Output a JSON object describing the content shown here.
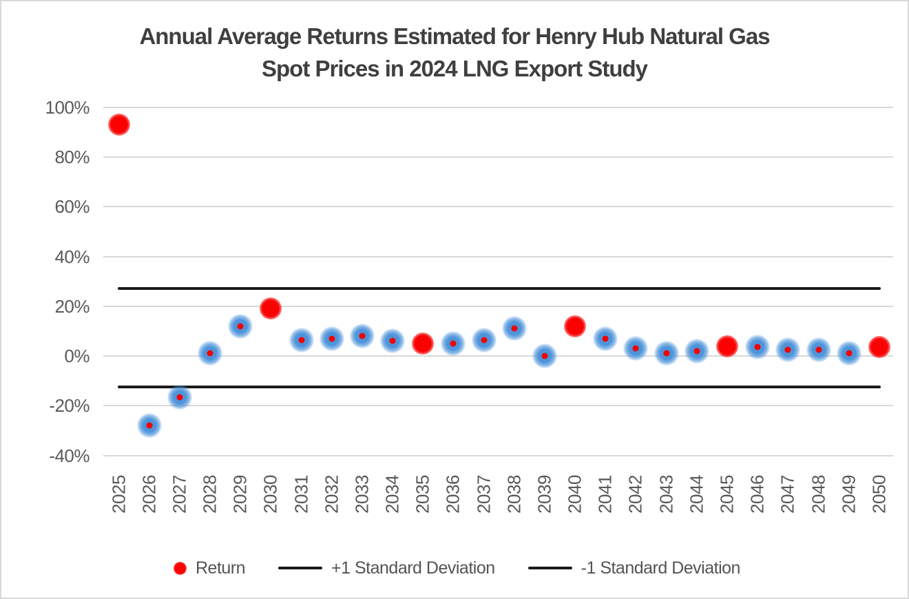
{
  "window": {
    "background": "#ffffff",
    "border_color": "#d9d9d9"
  },
  "title": {
    "line1": "Annual Average Returns Estimated for Henry Hub Natural Gas",
    "line2": "Spot Prices in 2024 LNG Export Study"
  },
  "legend": {
    "position": "bottom",
    "items": [
      {
        "label": "Return",
        "marker": "red-dot"
      },
      {
        "label": "+1 Standard Deviation",
        "marker": "black-line"
      },
      {
        "label": "-1 Standard Deviation",
        "marker": "black-line"
      }
    ]
  },
  "colors": {
    "return_red": "#fa0202",
    "halo_blue": "#4d94db",
    "sd_line_black": "#1a1a1a",
    "gridline_gray": "#d9d9d9",
    "title_text": "#3f3f3f",
    "axis_text": "#595959"
  },
  "chart_data": {
    "type": "scatter",
    "title": "Annual Average Returns Estimated for Henry Hub Natural Gas Spot Prices in 2024 LNG Export Study",
    "xlabel": "",
    "ylabel": "",
    "ytick_format": "percent",
    "yticks": [
      100,
      80,
      60,
      40,
      20,
      0,
      -20,
      -40
    ],
    "ylim": [
      -45,
      105
    ],
    "grid": true,
    "legend_position": "bottom",
    "categories": [
      2025,
      2026,
      2027,
      2028,
      2029,
      2030,
      2031,
      2032,
      2033,
      2034,
      2035,
      2036,
      2037,
      2038,
      2039,
      2040,
      2041,
      2042,
      2043,
      2044,
      2045,
      2046,
      2047,
      2048,
      2049,
      2050
    ],
    "series": [
      {
        "name": "Return",
        "type": "scatter",
        "values": [
          93,
          -28,
          -16.5,
          1,
          12,
          19,
          6.5,
          7,
          8,
          6,
          5,
          5,
          6.5,
          11,
          0,
          12,
          7,
          3,
          1,
          2,
          4,
          3.5,
          2.5,
          2.5,
          1,
          3.5
        ]
      },
      {
        "name": "+1 Standard Deviation",
        "type": "hline",
        "value": 27
      },
      {
        "name": "-1 Standard Deviation",
        "type": "hline",
        "value": -12.5
      }
    ],
    "solid_red_marker_years": [
      2025,
      2030,
      2035,
      2040,
      2045,
      2050
    ],
    "halo_marker_note": "all other years drawn as blue halo dot with small red center"
  }
}
